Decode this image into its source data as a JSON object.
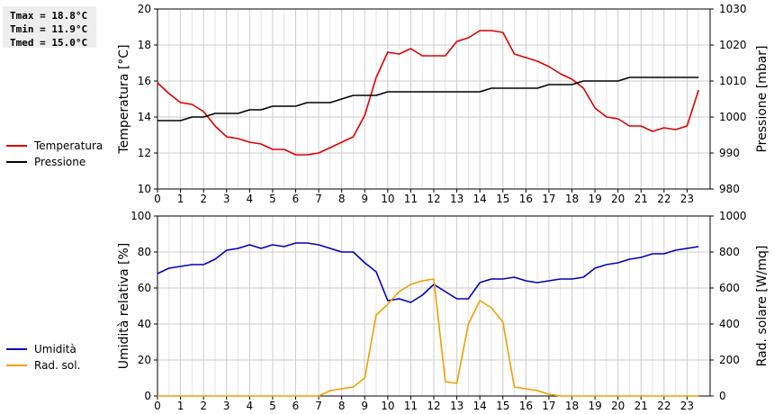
{
  "stats": {
    "tmax": "Tmax = 18.8°C",
    "tmin": "Tmin = 11.9°C",
    "tmed": "Tmed = 15.0°C"
  },
  "chart_data": [
    {
      "type": "line",
      "x_ticks": [
        "0",
        "1",
        "2",
        "3",
        "4",
        "5",
        "6",
        "7",
        "8",
        "9",
        "10",
        "11",
        "12",
        "13",
        "14",
        "15",
        "16",
        "17",
        "18",
        "19",
        "20",
        "21",
        "22",
        "23"
      ],
      "xlim": [
        0,
        24
      ],
      "ylabel": "Temperatura [°C]",
      "ylim": [
        10,
        20
      ],
      "y_ticks": [
        "10",
        "12",
        "14",
        "16",
        "18",
        "20"
      ],
      "y2label": "Pressione [mbar]",
      "y2lim": [
        980,
        1030
      ],
      "y2_ticks": [
        "980",
        "990",
        "1000",
        "1010",
        "1020",
        "1030"
      ],
      "grid": true,
      "legend_position": "left",
      "series": [
        {
          "name": "Temperatura",
          "axis": "left",
          "color": "#dd0000",
          "x": [
            0,
            0.5,
            1,
            1.5,
            2,
            2.5,
            3,
            3.5,
            4,
            4.5,
            5,
            5.5,
            6,
            6.5,
            7,
            7.5,
            8,
            8.5,
            9,
            9.5,
            10,
            10.5,
            11,
            11.5,
            12,
            12.5,
            13,
            13.5,
            14,
            14.5,
            15,
            15.5,
            16,
            16.5,
            17,
            17.5,
            18,
            18.5,
            19,
            19.5,
            20,
            20.5,
            21,
            21.5,
            22,
            22.5,
            23,
            23.5
          ],
          "values": [
            15.9,
            15.3,
            14.8,
            14.7,
            14.3,
            13.5,
            12.9,
            12.8,
            12.6,
            12.5,
            12.2,
            12.2,
            11.9,
            11.9,
            12.0,
            12.3,
            12.6,
            12.9,
            14.1,
            16.2,
            17.6,
            17.5,
            17.8,
            17.4,
            17.4,
            17.4,
            18.2,
            18.4,
            18.8,
            18.8,
            18.7,
            17.5,
            17.3,
            17.1,
            16.8,
            16.4,
            16.1,
            15.6,
            14.5,
            14.0,
            13.9,
            13.5,
            13.5,
            13.2,
            13.4,
            13.3,
            13.5,
            15.5
          ]
        },
        {
          "name": "Pressione",
          "axis": "right",
          "color": "#000000",
          "x": [
            0,
            0.5,
            1,
            1.5,
            2,
            2.5,
            3,
            3.5,
            4,
            4.5,
            5,
            5.5,
            6,
            6.5,
            7,
            7.5,
            8,
            8.5,
            9,
            9.5,
            10,
            10.5,
            11,
            11.5,
            12,
            12.5,
            13,
            13.5,
            14,
            14.5,
            15,
            15.5,
            16,
            16.5,
            17,
            17.5,
            18,
            18.5,
            19,
            19.5,
            20,
            20.5,
            21,
            21.5,
            22,
            22.5,
            23,
            23.5
          ],
          "values": [
            999,
            999,
            999,
            1000,
            1000,
            1001,
            1001,
            1001,
            1002,
            1002,
            1003,
            1003,
            1003,
            1004,
            1004,
            1004,
            1005,
            1006,
            1006,
            1006,
            1007,
            1007,
            1007,
            1007,
            1007,
            1007,
            1007,
            1007,
            1007,
            1008,
            1008,
            1008,
            1008,
            1008,
            1009,
            1009,
            1009,
            1010,
            1010,
            1010,
            1010,
            1011,
            1011,
            1011,
            1011,
            1011,
            1011,
            1011
          ]
        }
      ]
    },
    {
      "type": "line",
      "x_ticks": [
        "0",
        "1",
        "2",
        "3",
        "4",
        "5",
        "6",
        "7",
        "8",
        "9",
        "10",
        "11",
        "12",
        "13",
        "14",
        "15",
        "16",
        "17",
        "18",
        "19",
        "20",
        "21",
        "22",
        "23"
      ],
      "xlim": [
        0,
        24
      ],
      "ylabel": "Umidità relativa [%]",
      "ylim": [
        0,
        100
      ],
      "y_ticks": [
        "0",
        "20",
        "40",
        "60",
        "80",
        "100"
      ],
      "y2label": "Rad. solare [W/mq]",
      "y2lim": [
        0,
        1000
      ],
      "y2_ticks": [
        "0",
        "200",
        "400",
        "600",
        "800",
        "1000"
      ],
      "grid": true,
      "legend_position": "left",
      "series": [
        {
          "name": "Umidità",
          "axis": "left",
          "color": "#0000bb",
          "x": [
            0,
            0.5,
            1,
            1.5,
            2,
            2.5,
            3,
            3.5,
            4,
            4.5,
            5,
            5.5,
            6,
            6.5,
            7,
            7.5,
            8,
            8.5,
            9,
            9.5,
            10,
            10.5,
            11,
            11.5,
            12,
            12.5,
            13,
            13.5,
            14,
            14.5,
            15,
            15.5,
            16,
            16.5,
            17,
            17.5,
            18,
            18.5,
            19,
            19.5,
            20,
            20.5,
            21,
            21.5,
            22,
            22.5,
            23,
            23.5
          ],
          "values": [
            68,
            71,
            72,
            73,
            73,
            76,
            81,
            82,
            84,
            82,
            84,
            83,
            85,
            85,
            84,
            82,
            80,
            80,
            74,
            69,
            53,
            54,
            52,
            56,
            62,
            58,
            54,
            54,
            63,
            65,
            65,
            66,
            64,
            63,
            64,
            65,
            65,
            66,
            71,
            73,
            74,
            76,
            77,
            79,
            79,
            81,
            82,
            83
          ]
        },
        {
          "name": "Rad. sol.",
          "axis": "right",
          "color": "#f0a000",
          "x": [
            0,
            0.5,
            1,
            1.5,
            2,
            2.5,
            3,
            3.5,
            4,
            4.5,
            5,
            5.5,
            6,
            6.5,
            7,
            7.5,
            8,
            8.5,
            9,
            9.5,
            10,
            10.5,
            11,
            11.5,
            12,
            12.5,
            13,
            13.5,
            14,
            14.5,
            15,
            15.5,
            16,
            16.5,
            17,
            17.5,
            18,
            18.5,
            19,
            19.5,
            20,
            20.5,
            21,
            21.5,
            22,
            22.5,
            23,
            23.5
          ],
          "values": [
            0,
            0,
            0,
            0,
            0,
            0,
            0,
            0,
            0,
            0,
            0,
            0,
            0,
            0,
            0,
            30,
            40,
            50,
            100,
            450,
            510,
            580,
            620,
            640,
            650,
            80,
            70,
            400,
            530,
            490,
            410,
            50,
            40,
            30,
            10,
            0,
            0,
            0,
            0,
            0,
            0,
            0,
            0,
            0,
            0,
            0,
            0,
            0
          ]
        }
      ]
    }
  ]
}
